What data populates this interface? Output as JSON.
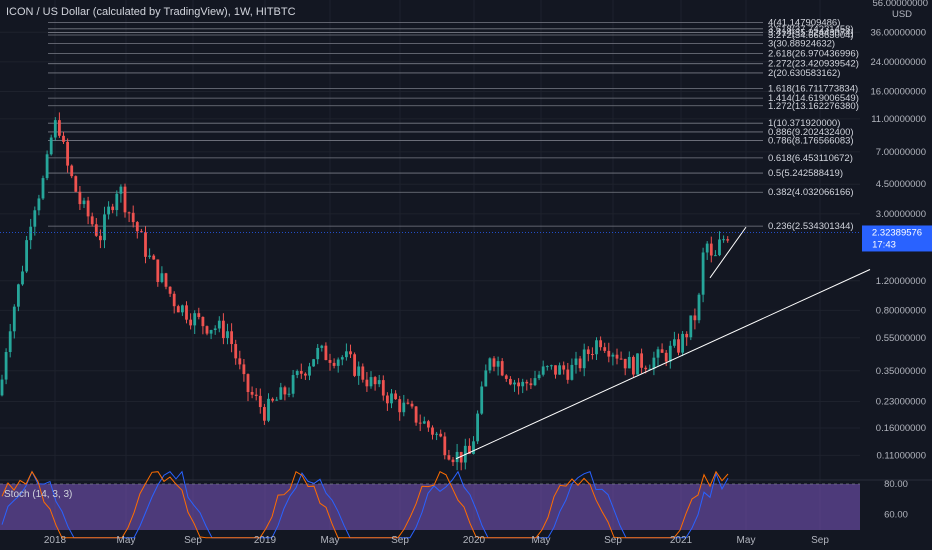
{
  "header": {
    "title": "ICON / US Dollar (calculated by TradingView), 1W, HITBTC"
  },
  "price_axis": {
    "currency": "USD",
    "top_label": "56.00000000",
    "ticks": [
      "36.00000000",
      "24.00000000",
      "16.00000000",
      "11.00000000",
      "7.00000000",
      "4.50000000",
      "3.00000000",
      "1.20000000",
      "0.80000000",
      "0.55000000",
      "0.35000000",
      "0.23000000",
      "0.16000000",
      "0.11000000"
    ],
    "tick_values": [
      36,
      24,
      16,
      11,
      7,
      4.5,
      3,
      1.2,
      0.8,
      0.55,
      0.35,
      0.23,
      0.16,
      0.11
    ],
    "last_price": "2.32389576",
    "countdown": "17:43",
    "last_price_value": 2.3239,
    "accent": "#2962ff"
  },
  "stoch": {
    "label": "Stoch (14, 3, 3)",
    "ticks": [
      "80.00",
      "60.00"
    ],
    "k_color": "#2962ff",
    "d_color": "#ff6d00",
    "band_color": "#7e57c2"
  },
  "chart_data": {
    "type": "candlestick",
    "title": "ICON / US Dollar (calculated by TradingView), 1W, HITBTC",
    "y_scale": "log",
    "ylim": [
      0.09,
      56
    ],
    "x_ticks": [
      "2018",
      "May",
      "Sep",
      "2019",
      "May",
      "Sep",
      "2020",
      "May",
      "Sep",
      "2021",
      "May",
      "Sep"
    ],
    "fib_levels": [
      {
        "label": "4(41.147909486)",
        "value": 41.147909486
      },
      {
        "label": "3.618(37.74231458)",
        "value": 37.74231458
      },
      {
        "label": "3.414(35.92443074)",
        "value": 35.92443074
      },
      {
        "label": "3.272(34.66863004)",
        "value": 34.66863004
      },
      {
        "label": "3(30.88924632)",
        "value": 30.88924632
      },
      {
        "label": "2.618(26.970436996)",
        "value": 26.970436996
      },
      {
        "label": "2.272(23.420939542)",
        "value": 23.420939542
      },
      {
        "label": "2(20.630583162)",
        "value": 20.630583162
      },
      {
        "label": "1.618(16.711773834)",
        "value": 16.711773834
      },
      {
        "label": "1.414(14.619006549)",
        "value": 14.619006549
      },
      {
        "label": "1.272(13.162276380)",
        "value": 13.16227638
      },
      {
        "label": "1(10.371920000)",
        "value": 10.37192
      },
      {
        "label": "0.886(9.202432400)",
        "value": 9.2024324
      },
      {
        "label": "0.786(8.176566083)",
        "value": 8.176566083
      },
      {
        "label": "0.618(6.453110672)",
        "value": 6.453110672
      },
      {
        "label": "0.5(5.242588419)",
        "value": 5.242588419
      },
      {
        "label": "0.382(4.032066166)",
        "value": 4.032066166
      },
      {
        "label": "0.236(2.534301344)",
        "value": 2.534301344
      }
    ],
    "candle_colors": {
      "up": "#26a69a",
      "down": "#ef5350"
    },
    "trendlines": [
      {
        "from": {
          "week": 0.41,
          "price": 0.1
        },
        "to": {
          "week": 1.0,
          "price": 1.4
        }
      },
      {
        "from": {
          "week": 0.76,
          "price": 1.25
        },
        "to": {
          "week": 0.8,
          "price": 2.5
        }
      }
    ]
  }
}
